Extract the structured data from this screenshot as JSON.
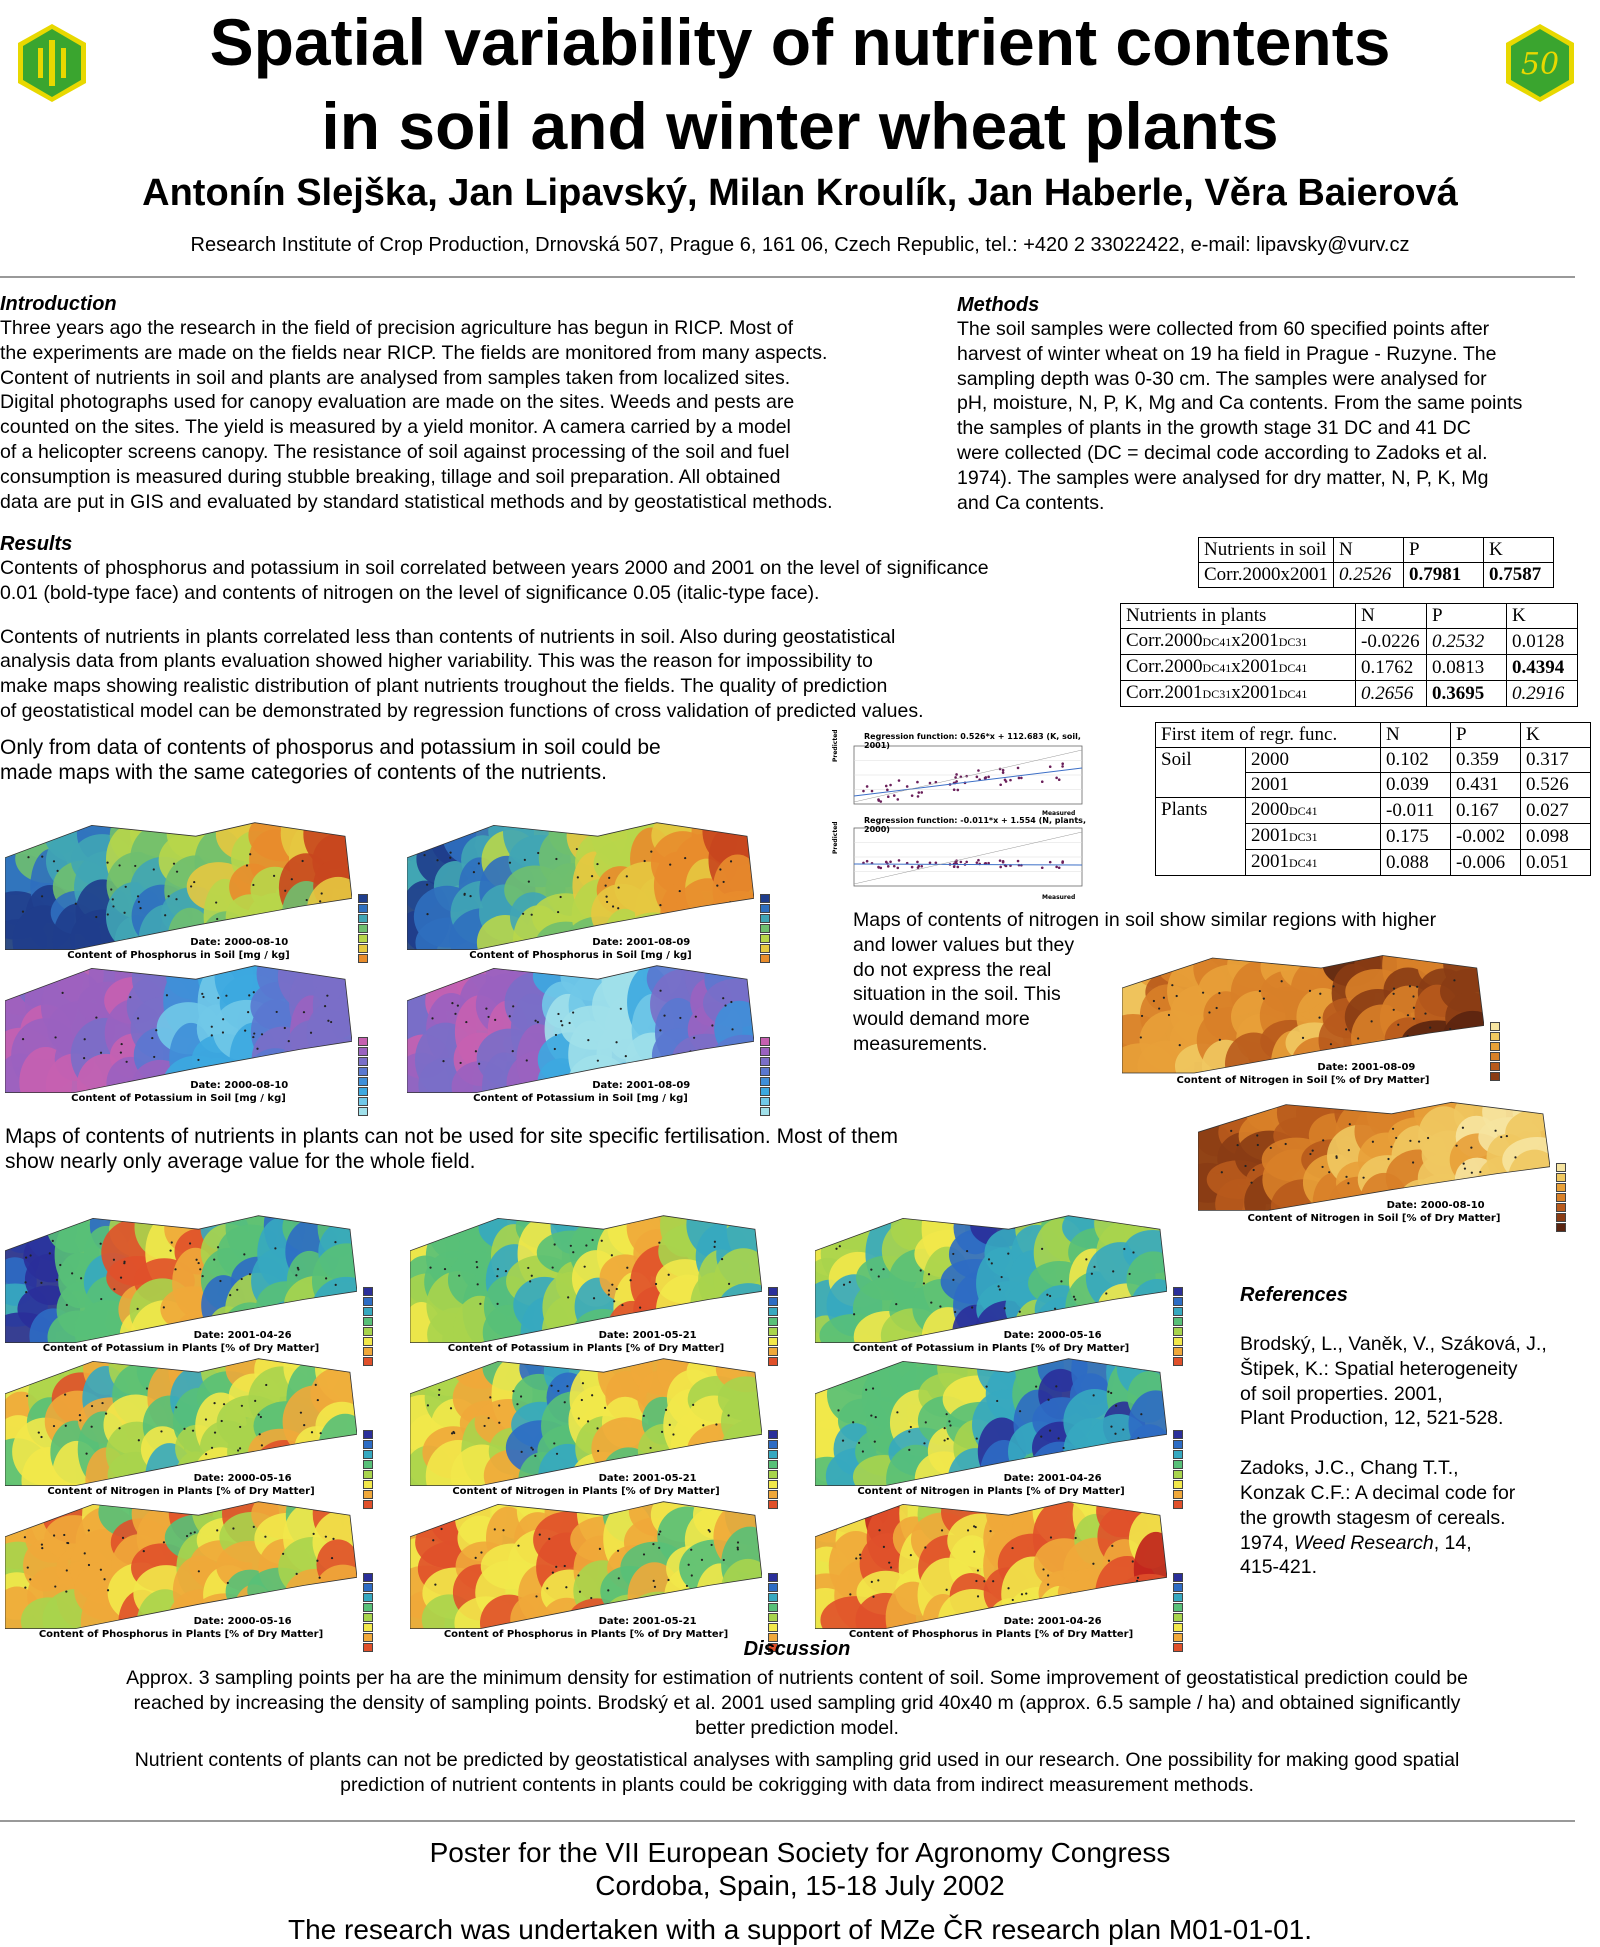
{
  "header": {
    "title_line1": "Spatial variability of nutrient contents",
    "title_line2": "in soil and winter wheat plants",
    "authors": "Antonín Slejška, Jan Lipavský, Milan Kroulík, Jan Haberle, Věra Baierová",
    "affiliation": "Research Institute of Crop Production, Drnovská 507, Prague 6, 161 06, Czech Republic, tel.: +420 2 33022422, e-mail: lipavsky@vurv.cz",
    "logo_right_text": "50"
  },
  "introduction": {
    "heading": "Introduction",
    "lines": [
      "Three years ago the research in the field of precision agriculture has begun in RICP. Most of",
      "the experiments are made on the fields near RICP. The fields are monitored from many aspects.",
      "Content of nutrients in soil and plants are analysed from samples taken from localized sites.",
      "Digital photographs used for canopy evaluation are made on the sites. Weeds and pests are",
      "counted on the sites. The yield is measured by a yield monitor. A camera carried by a model",
      "of a helicopter screens canopy. The resistance of soil against processing of the soil and fuel",
      "consumption is measured during stubble breaking, tillage and soil preparation. All obtained",
      "data are put in GIS and evaluated by standard statistical methods and by geostatistical methods."
    ]
  },
  "methods": {
    "heading": "Methods",
    "lines": [
      "The soil samples were collected from 60 specified points after",
      "harvest of winter wheat on 19 ha field in Prague - Ruzyne. The",
      "sampling depth was 0-30 cm. The samples were analysed for",
      "pH, moisture, N, P, K, Mg and Ca contents. From the same points",
      "the samples of plants in the growth stage 31 DC and 41 DC",
      "were collected (DC = decimal code according to Zadoks et al.",
      "1974). The samples were analysed for dry matter, N, P, K, Mg",
      "and Ca contents."
    ]
  },
  "results": {
    "heading": "Results",
    "p1_lines": [
      "Contents of phosphorus and potassium in soil correlated between years 2000 and 2001 on the level of significance",
      "0.01 (bold-type face) and contents of nitrogen on the level of significance 0.05 (italic-type face)."
    ],
    "p2_lines": [
      "Contents of nutrients in plants correlated less than contents of nutrients in soil. Also during geostatistical",
      "analysis data from plants evaluation showed higher variability. This was the reason for impossibility to",
      "make maps showing realistic distribution of plant nutrients troughout the fields. The quality of prediction",
      "of geostatistical model can be demonstrated by regression functions of cross validation of predicted values."
    ],
    "p3_lines": [
      "Only from data of contents of phosporus and potassium in soil could be",
      "made maps with the same categories of contents of the nutrients."
    ],
    "nitrogen_lines": [
      "Maps of contents of nitrogen in soil show similar regions with higher",
      "and lower values but they",
      "do not express the real",
      "situation in the soil. This",
      "would demand more",
      "measurements."
    ],
    "plants_lines": [
      "Maps of contents of nutrients in plants can not be used for site specific fertilisation. Most of them",
      "show nearly only average value for the whole field."
    ]
  },
  "table_soil": {
    "header": [
      "Nutrients in soil",
      "N",
      "P",
      "K"
    ],
    "row_label": "Corr.2000x2001",
    "values": [
      "0.2526",
      "0.7981",
      "0.7587"
    ]
  },
  "table_plants": {
    "header": [
      "Nutrients in plants",
      "N",
      "P",
      "K"
    ],
    "rows": [
      {
        "a": "Corr.2000",
        "s1": "DC41",
        "b": "x2001",
        "s2": "DC31",
        "N": "-0.0226",
        "P": "0.2532",
        "K": "0.0128"
      },
      {
        "a": "Corr.2000",
        "s1": "DC41",
        "b": "x2001",
        "s2": "DC41",
        "N": "0.1762",
        "P": "0.0813",
        "K": "0.4394"
      },
      {
        "a": "Corr.2001",
        "s1": "DC31",
        "b": "x2001",
        "s2": "DC41",
        "N": "0.2656",
        "P": "0.3695",
        "K": "0.2916"
      }
    ]
  },
  "table_regr": {
    "header": [
      "First item of regr. func.",
      "N",
      "P",
      "K"
    ],
    "group_soil": "Soil",
    "group_plants": "Plants",
    "rows": [
      {
        "year": "2000",
        "sub": "",
        "N": "0.102",
        "P": "0.359",
        "K": "0.317"
      },
      {
        "year": "2001",
        "sub": "",
        "N": "0.039",
        "P": "0.431",
        "K": "0.526"
      },
      {
        "year": "2000",
        "sub": "DC41",
        "N": "-0.011",
        "P": "0.167",
        "K": "0.027"
      },
      {
        "year": "2001",
        "sub": "DC31",
        "N": "0.175",
        "P": "-0.002",
        "K": "0.098"
      },
      {
        "year": "2001",
        "sub": "DC41",
        "N": "0.088",
        "P": "-0.006",
        "K": "0.051"
      }
    ]
  },
  "regression": {
    "top_title": "Regression function: 0.526*x + 112.683 (K, soil, 2001)",
    "bottom_title": "Regression function: -0.011*x + 1.554 (N, plants, 2000)",
    "top_xlabel": "Measured",
    "bottom_xlabel": "Measured",
    "ylabel": "Predicted"
  },
  "maps": {
    "soil": [
      {
        "date": "Date: 2000-08-10",
        "title": "Content of Phosphorus in Soil [mg / kg]"
      },
      {
        "date": "Date: 2001-08-09",
        "title": "Content of Phosphorus in Soil [mg / kg]"
      },
      {
        "date": "Date: 2000-08-10",
        "title": "Content of Potassium in Soil [mg / kg]"
      },
      {
        "date": "Date: 2001-08-09",
        "title": "Content of Potassium in Soil [mg / kg]"
      }
    ],
    "nitrogen": [
      {
        "date": "Date: 2001-08-09",
        "title": "Content of Nitrogen in Soil [% of Dry Matter]"
      },
      {
        "date": "Date: 2000-08-10",
        "title": "Content of Nitrogen in Soil [% of Dry Matter]"
      }
    ],
    "plants": [
      {
        "date": "Date: 2001-04-26",
        "title": "Content of Potassium in Plants [% of Dry Matter]"
      },
      {
        "date": "Date: 2001-05-21",
        "title": "Content of Potassium in Plants [% of Dry Matter]"
      },
      {
        "date": "Date: 2000-05-16",
        "title": "Content of Potassium in Plants [% of Dry Matter]"
      },
      {
        "date": "Date: 2000-05-16",
        "title": "Content of Nitrogen in Plants [% of Dry Matter]"
      },
      {
        "date": "Date: 2001-05-21",
        "title": "Content of Nitrogen in Plants [% of Dry Matter]"
      },
      {
        "date": "Date: 2001-04-26",
        "title": "Content of Nitrogen in Plants [% of Dry Matter]"
      },
      {
        "date": "Date: 2000-05-16",
        "title": "Content of Phosphorus in Plants [% of Dry Matter]"
      },
      {
        "date": "Date: 2001-05-21",
        "title": "Content of Phosphorus in Plants [% of Dry Matter]"
      },
      {
        "date": "Date: 2001-04-26",
        "title": "Content of Phosphorus in Plants [% of Dry Matter]"
      }
    ]
  },
  "references": {
    "heading": "References",
    "ref1_lines": [
      "Brodský, L., Vaněk, V., Száková, J.,",
      "Štipek, K.: Spatial heterogeneity",
      "of soil properties. 2001,",
      "Plant Production, 12, 521-528."
    ],
    "ref2_lines": [
      "Zadoks, J.C., Chang T.T.,",
      "Konzak C.F.: A decimal code for",
      "the growth stagesm of cereals."
    ],
    "ref2_year": "1974, ",
    "ref2_journal": "Weed Research",
    "ref2_rest": ", 14,",
    "ref2_pages": "415-421."
  },
  "discussion": {
    "heading": "Discussion",
    "p1_lines": [
      "Approx. 3 sampling points per ha are the minimum density for estimation of nutrients content of soil. Some improvement of geostatistical prediction could be",
      "reached by increasing the density of sampling points. Brodský et al. 2001 used sampling grid 40x40 m (approx. 6.5 sample / ha) and obtained significantly",
      "better prediction model."
    ],
    "p2_lines": [
      "Nutrient contents of plants can not be predicted by geostatistical analyses with sampling grid used in our research. One possibility for making good spatial",
      "prediction of nutrient contents in plants could be cokrigging with data from indirect measurement methods."
    ]
  },
  "footer": {
    "line1": "Poster for the VII European Society for Agronomy Congress",
    "line2": "Cordoba, Spain, 15-18 July 2002",
    "line3": "The research was undertaken with a support of MZe ČR research plan M01-01-01."
  },
  "colors": {
    "logo_green": "#3aa52f",
    "logo_yellow": "#e8d800",
    "rule": "#999999"
  }
}
